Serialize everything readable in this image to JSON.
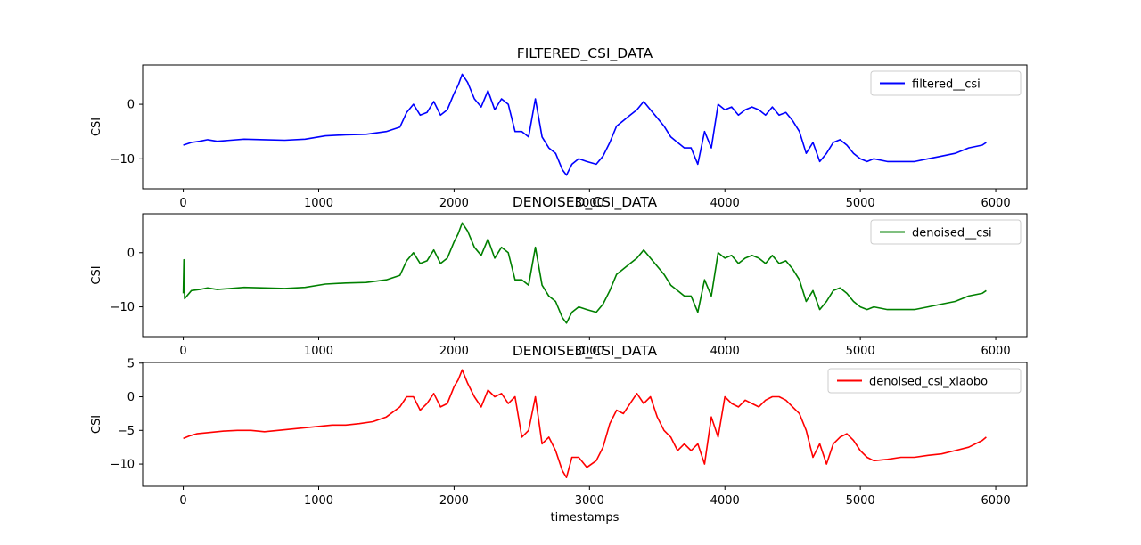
{
  "chart_data": [
    {
      "type": "line",
      "title": "FILTERED_CSI_DATA",
      "xlabel": "",
      "ylabel": "CSI",
      "xlim": [
        -300,
        6230
      ],
      "ylim": [
        -15.5,
        7.2
      ],
      "xticks": [
        0,
        1000,
        2000,
        3000,
        4000,
        5000,
        6000
      ],
      "yticks": [
        0,
        -10
      ],
      "grid": false,
      "legend": "top-right",
      "series": [
        {
          "name": "filtered__csi",
          "color": "#0000ff",
          "x": [
            0,
            60,
            120,
            180,
            250,
            350,
            450,
            600,
            750,
            900,
            1050,
            1200,
            1350,
            1500,
            1600,
            1650,
            1700,
            1750,
            1800,
            1850,
            1900,
            1950,
            2000,
            2030,
            2060,
            2100,
            2150,
            2200,
            2250,
            2300,
            2350,
            2400,
            2450,
            2500,
            2550,
            2600,
            2650,
            2700,
            2750,
            2800,
            2830,
            2870,
            2920,
            2980,
            3050,
            3100,
            3150,
            3200,
            3250,
            3300,
            3350,
            3400,
            3450,
            3500,
            3550,
            3600,
            3650,
            3700,
            3750,
            3800,
            3850,
            3900,
            3950,
            4000,
            4050,
            4100,
            4150,
            4200,
            4250,
            4300,
            4350,
            4400,
            4450,
            4500,
            4550,
            4600,
            4650,
            4700,
            4750,
            4800,
            4850,
            4900,
            4950,
            5000,
            5050,
            5100,
            5200,
            5300,
            5400,
            5500,
            5600,
            5700,
            5800,
            5900,
            5930
          ],
          "y": [
            -7.5,
            -7,
            -6.8,
            -6.5,
            -6.8,
            -6.6,
            -6.4,
            -6.5,
            -6.6,
            -6.4,
            -5.8,
            -5.6,
            -5.5,
            -5,
            -4.2,
            -1.5,
            0,
            -2,
            -1.5,
            0.5,
            -2,
            -1,
            2,
            3.5,
            5.5,
            4,
            1,
            -0.5,
            2.5,
            -1,
            1,
            0,
            -5,
            -5,
            -6,
            1,
            -6,
            -8,
            -9,
            -12,
            -13,
            -11,
            -10,
            -10.5,
            -11,
            -9.5,
            -7,
            -4,
            -3,
            -2,
            -1,
            0.5,
            -1,
            -2.5,
            -4,
            -6,
            -7,
            -8,
            -8,
            -11,
            -5,
            -8,
            0,
            -1,
            -0.5,
            -2,
            -1,
            -0.5,
            -1,
            -2,
            -0.5,
            -2,
            -1.5,
            -3,
            -5,
            -9,
            -7,
            -10.5,
            -9,
            -7,
            -6.5,
            -7.5,
            -9,
            -10,
            -10.5,
            -10,
            -10.5,
            -10.5,
            -10.5,
            -10,
            -9.5,
            -9,
            -8,
            -7.5,
            -7
          ]
        }
      ]
    },
    {
      "type": "line",
      "title": "DENOISED_CSI_DATA",
      "xlabel": "",
      "ylabel": "CSI",
      "xlim": [
        -300,
        6230
      ],
      "ylim": [
        -15.5,
        7.2
      ],
      "xticks": [
        0,
        1000,
        2000,
        3000,
        4000,
        5000,
        6000
      ],
      "yticks": [
        0,
        -10
      ],
      "grid": false,
      "legend": "top-right",
      "series": [
        {
          "name": "denoised__csi",
          "color": "#008000",
          "x": [
            0,
            5,
            10,
            60,
            120,
            180,
            250,
            350,
            450,
            600,
            750,
            900,
            1050,
            1200,
            1350,
            1500,
            1600,
            1650,
            1700,
            1750,
            1800,
            1850,
            1900,
            1950,
            2000,
            2030,
            2060,
            2100,
            2150,
            2200,
            2250,
            2300,
            2350,
            2400,
            2450,
            2500,
            2550,
            2600,
            2650,
            2700,
            2750,
            2800,
            2830,
            2870,
            2920,
            2980,
            3050,
            3100,
            3150,
            3200,
            3250,
            3300,
            3350,
            3400,
            3450,
            3500,
            3550,
            3600,
            3650,
            3700,
            3750,
            3800,
            3850,
            3900,
            3950,
            4000,
            4050,
            4100,
            4150,
            4200,
            4250,
            4300,
            4350,
            4400,
            4450,
            4500,
            4550,
            4600,
            4650,
            4700,
            4750,
            4800,
            4850,
            4900,
            4950,
            5000,
            5050,
            5100,
            5200,
            5300,
            5400,
            5500,
            5600,
            5700,
            5800,
            5900,
            5930
          ],
          "y": [
            -7.5,
            -1.3,
            -8.5,
            -7,
            -6.8,
            -6.5,
            -6.8,
            -6.6,
            -6.4,
            -6.5,
            -6.6,
            -6.4,
            -5.8,
            -5.6,
            -5.5,
            -5,
            -4.2,
            -1.5,
            0,
            -2,
            -1.5,
            0.5,
            -2,
            -1,
            2,
            3.5,
            5.5,
            4,
            1,
            -0.5,
            2.5,
            -1,
            1,
            0,
            -5,
            -5,
            -6,
            1,
            -6,
            -8,
            -9,
            -12,
            -13,
            -11,
            -10,
            -10.5,
            -11,
            -9.5,
            -7,
            -4,
            -3,
            -2,
            -1,
            0.5,
            -1,
            -2.5,
            -4,
            -6,
            -7,
            -8,
            -8,
            -11,
            -5,
            -8,
            0,
            -1,
            -0.5,
            -2,
            -1,
            -0.5,
            -1,
            -2,
            -0.5,
            -2,
            -1.5,
            -3,
            -5,
            -9,
            -7,
            -10.5,
            -9,
            -7,
            -6.5,
            -7.5,
            -9,
            -10,
            -10.5,
            -10,
            -10.5,
            -10.5,
            -10.5,
            -10,
            -9.5,
            -9,
            -8,
            -7.5,
            -7
          ]
        }
      ]
    },
    {
      "type": "line",
      "title": "DENOISED_CSI_DATA",
      "xlabel": "timestamps",
      "ylabel": "CSI",
      "xlim": [
        -300,
        6230
      ],
      "ylim": [
        -13.3,
        5.1
      ],
      "xticks": [
        0,
        1000,
        2000,
        3000,
        4000,
        5000,
        6000
      ],
      "yticks": [
        5,
        0,
        -5,
        -10
      ],
      "grid": false,
      "legend": "top-right",
      "series": [
        {
          "name": "denoised_csi_xiaobo",
          "color": "#ff0000",
          "x": [
            0,
            50,
            100,
            200,
            300,
            400,
            500,
            600,
            700,
            800,
            900,
            1000,
            1100,
            1200,
            1300,
            1400,
            1500,
            1600,
            1650,
            1700,
            1750,
            1800,
            1850,
            1900,
            1950,
            2000,
            2030,
            2060,
            2100,
            2150,
            2200,
            2250,
            2300,
            2350,
            2400,
            2450,
            2500,
            2550,
            2600,
            2650,
            2700,
            2750,
            2800,
            2830,
            2870,
            2920,
            2980,
            3050,
            3100,
            3150,
            3200,
            3250,
            3300,
            3350,
            3400,
            3450,
            3500,
            3550,
            3600,
            3650,
            3700,
            3750,
            3800,
            3850,
            3900,
            3950,
            4000,
            4050,
            4100,
            4150,
            4200,
            4250,
            4300,
            4350,
            4400,
            4450,
            4500,
            4550,
            4600,
            4650,
            4700,
            4750,
            4800,
            4850,
            4900,
            4950,
            5000,
            5050,
            5100,
            5200,
            5300,
            5400,
            5500,
            5600,
            5700,
            5800,
            5900,
            5930
          ],
          "y": [
            -6.2,
            -5.8,
            -5.5,
            -5.3,
            -5.1,
            -5,
            -5,
            -5.2,
            -5,
            -4.8,
            -4.6,
            -4.4,
            -4.2,
            -4.2,
            -4,
            -3.7,
            -3,
            -1.5,
            0,
            0,
            -2,
            -1,
            0.5,
            -1.5,
            -1,
            1.5,
            2.5,
            4,
            2,
            0,
            -1.5,
            1,
            0,
            0.5,
            -1,
            0,
            -6,
            -5,
            0,
            -7,
            -6,
            -8,
            -11,
            -12,
            -9,
            -9,
            -10.5,
            -9.5,
            -7.5,
            -4,
            -2,
            -2.5,
            -1,
            0.5,
            -1,
            0,
            -3,
            -5,
            -6,
            -8,
            -7,
            -8,
            -7,
            -10,
            -3,
            -6,
            0,
            -1,
            -1.5,
            -0.5,
            -1,
            -1.5,
            -0.5,
            0,
            0,
            -0.5,
            -1.5,
            -2.5,
            -5,
            -9,
            -7,
            -10,
            -7,
            -6,
            -5.5,
            -6.5,
            -8,
            -9,
            -9.5,
            -9.3,
            -9,
            -9,
            -8.7,
            -8.5,
            -8,
            -7.5,
            -6.5,
            -6
          ]
        }
      ]
    }
  ]
}
